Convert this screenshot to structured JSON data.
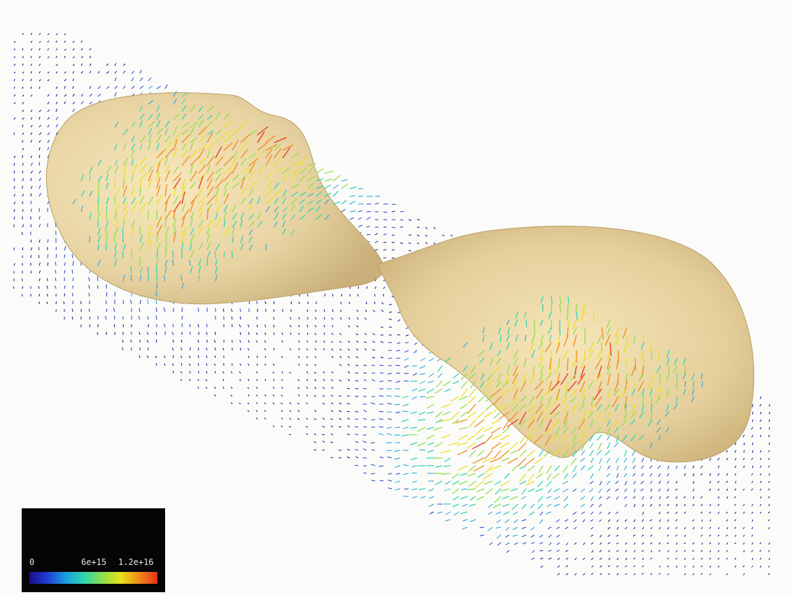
{
  "colorbar": {
    "tick_min": "0",
    "tick_mid": "6e+15",
    "tick_max": "1.2e+16",
    "colors": [
      "#1a0c8c",
      "#1f3fd0",
      "#1aa0e0",
      "#2fd6b0",
      "#8ee04a",
      "#e8e21a",
      "#f08a1a",
      "#e8321a"
    ]
  },
  "surface_color": "#e7d2a0",
  "background_color": "#fbfbf9"
}
